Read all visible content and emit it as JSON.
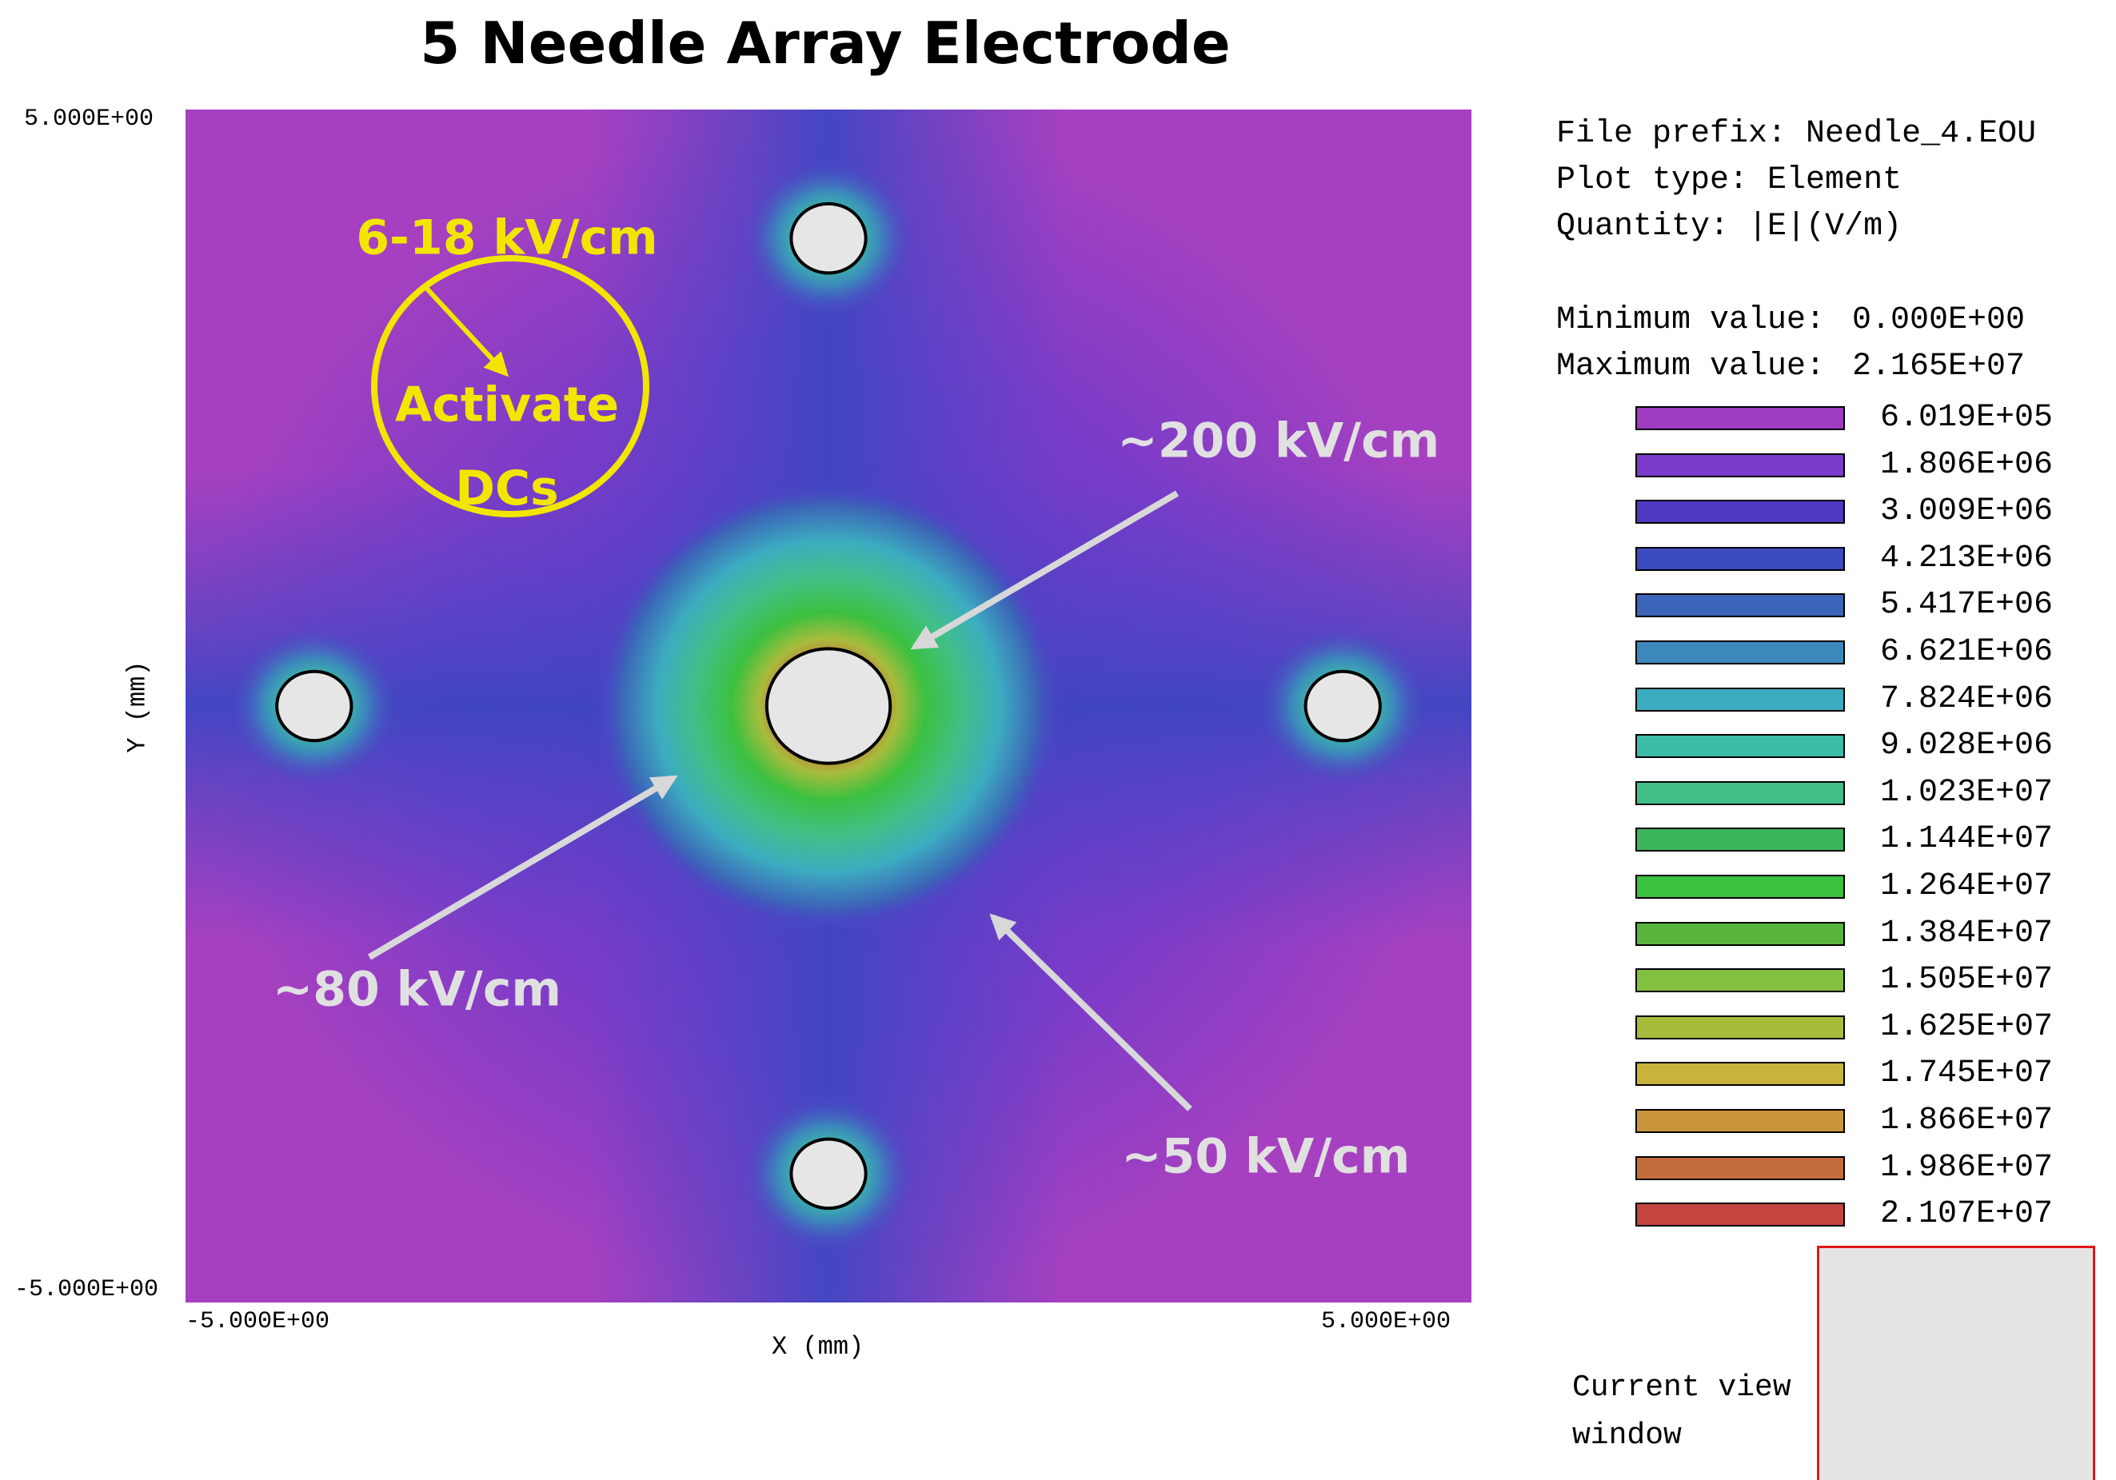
{
  "chart_data": {
    "type": "heatmap",
    "title": "5 Needle Array Electrode",
    "xlabel": "X (mm)",
    "ylabel": "Y (mm)",
    "xlim": [
      -5.0,
      5.0
    ],
    "ylim": [
      -5.0,
      5.0
    ],
    "x_ticks": [
      "-5.000E+00",
      "5.000E+00"
    ],
    "y_ticks": [
      "5.000E+00",
      "-5.000E+00"
    ],
    "needles": [
      {
        "x": 0.0,
        "y": 0.0,
        "r": 0.48
      },
      {
        "x": 0.0,
        "y": 3.92,
        "r": 0.29
      },
      {
        "x": 0.0,
        "y": -3.92,
        "r": 0.29
      },
      {
        "x": -4.0,
        "y": 0.0,
        "r": 0.29
      },
      {
        "x": 4.0,
        "y": 0.0,
        "r": 0.29
      }
    ],
    "annotations": [
      {
        "text": "6-18 kV/cm",
        "x": -2.5,
        "y": 3.9,
        "color": "#f2e600"
      },
      {
        "text": "Activate",
        "x": -2.5,
        "y": 2.5,
        "color": "#f2e600"
      },
      {
        "text": "DCs",
        "x": -2.5,
        "y": 1.8,
        "color": "#f2e600"
      },
      {
        "text": "~200 kV/cm",
        "x": 3.5,
        "y": 2.2,
        "color": "#e0e0e0"
      },
      {
        "text": "~80 kV/cm",
        "x": -3.2,
        "y": -2.4,
        "color": "#e0e0e0"
      },
      {
        "text": "~50 kV/cm",
        "x": 3.4,
        "y": -3.8,
        "color": "#e0e0e0"
      }
    ],
    "info": {
      "file_prefix": "File prefix: Needle_4.EOU",
      "plot_type": "Plot type: Element",
      "quantity": "Quantity: |E|(V/m)",
      "min_label": "Minimum value:",
      "min_value": "0.000E+00",
      "max_label": "Maximum value:",
      "max_value": "2.165E+07"
    },
    "legend": [
      {
        "value": "6.019E+05",
        "color": "#a03cc0"
      },
      {
        "value": "1.806E+06",
        "color": "#7a3cc8"
      },
      {
        "value": "3.009E+06",
        "color": "#5038c0"
      },
      {
        "value": "4.213E+06",
        "color": "#3c4ac0"
      },
      {
        "value": "5.417E+06",
        "color": "#3c64b8"
      },
      {
        "value": "6.621E+06",
        "color": "#3c88bc"
      },
      {
        "value": "7.824E+06",
        "color": "#3cacc0"
      },
      {
        "value": "9.028E+06",
        "color": "#3cbca8"
      },
      {
        "value": "1.023E+07",
        "color": "#40c088"
      },
      {
        "value": "1.144E+07",
        "color": "#3cb45c"
      },
      {
        "value": "1.264E+07",
        "color": "#3cc040"
      },
      {
        "value": "1.384E+07",
        "color": "#58b43c"
      },
      {
        "value": "1.505E+07",
        "color": "#84c040"
      },
      {
        "value": "1.625E+07",
        "color": "#a8bc3c"
      },
      {
        "value": "1.745E+07",
        "color": "#c8b43c"
      },
      {
        "value": "1.866E+07",
        "color": "#c8943c"
      },
      {
        "value": "1.986E+07",
        "color": "#c46c3c"
      },
      {
        "value": "2.107E+07",
        "color": "#c44440"
      }
    ],
    "view_window_label": "Current view\nwindow"
  }
}
